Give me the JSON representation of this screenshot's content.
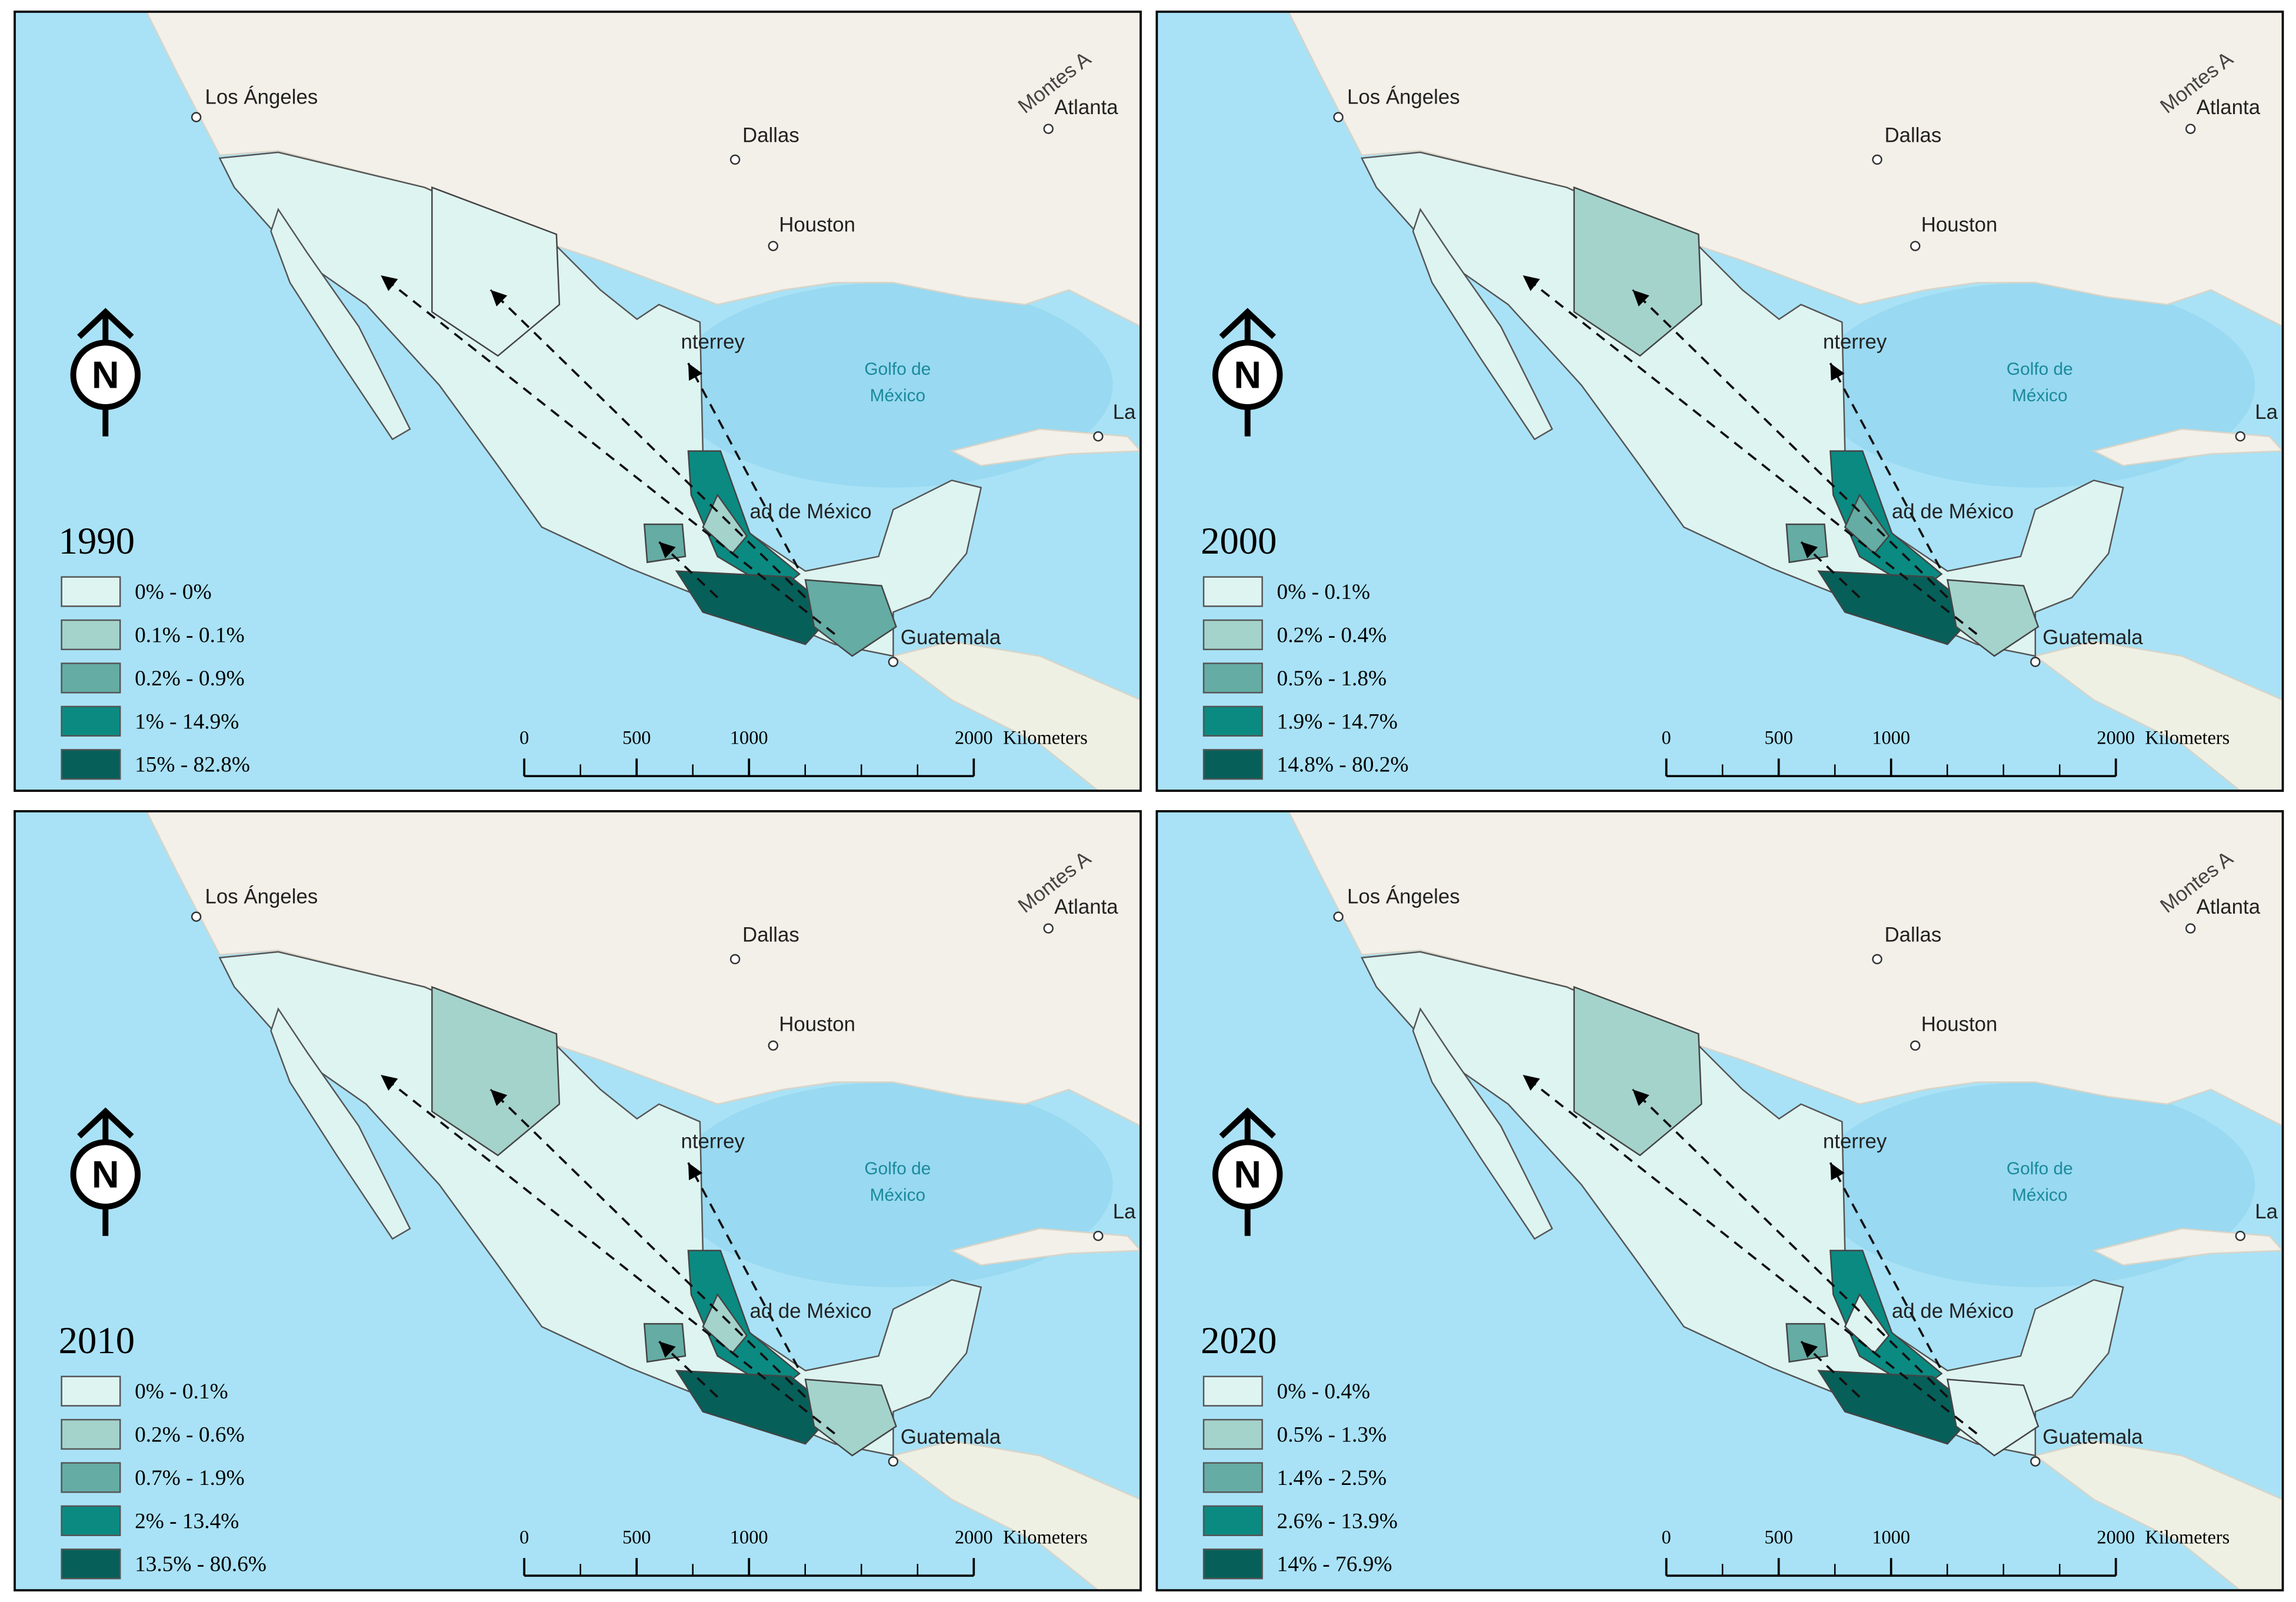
{
  "panels": [
    {
      "year": "1990",
      "legend": [
        {
          "label": "0% - 0%",
          "color": "#def4f1"
        },
        {
          "label": "0.1% - 0.1%",
          "color": "#a4d3cc"
        },
        {
          "label": "0.2% - 0.9%",
          "color": "#64aca4"
        },
        {
          "label": "1% - 14.9%",
          "color": "#0b8a82"
        },
        {
          "label": "15% - 82.8%",
          "color": "#075f59"
        }
      ]
    },
    {
      "year": "2000",
      "legend": [
        {
          "label": "0% - 0.1%",
          "color": "#def4f1"
        },
        {
          "label": "0.2% - 0.4%",
          "color": "#a4d3cc"
        },
        {
          "label": "0.5% - 1.8%",
          "color": "#64aca4"
        },
        {
          "label": "1.9% - 14.7%",
          "color": "#0b8a82"
        },
        {
          "label": "14.8% - 80.2%",
          "color": "#075f59"
        }
      ]
    },
    {
      "year": "2010",
      "legend": [
        {
          "label": "0% - 0.1%",
          "color": "#def4f1"
        },
        {
          "label": "0.2% - 0.6%",
          "color": "#a4d3cc"
        },
        {
          "label": "0.7% - 1.9%",
          "color": "#64aca4"
        },
        {
          "label": "2% - 13.4%",
          "color": "#0b8a82"
        },
        {
          "label": "13.5% - 80.6%",
          "color": "#075f59"
        }
      ]
    },
    {
      "year": "2020",
      "legend": [
        {
          "label": "0% - 0.4%",
          "color": "#def4f1"
        },
        {
          "label": "0.5% - 1.3%",
          "color": "#a4d3cc"
        },
        {
          "label": "1.4% - 2.5%",
          "color": "#64aca4"
        },
        {
          "label": "2.6% - 13.9%",
          "color": "#0b8a82"
        },
        {
          "label": "14% - 76.9%",
          "color": "#075f59"
        }
      ]
    }
  ],
  "places": {
    "los_angeles": "Los Ángeles",
    "dallas": "Dallas",
    "houston": "Houston",
    "atlanta": "Atlanta",
    "montes": "Montes A",
    "golfo_1": "Golfo de",
    "golfo_2": "México",
    "la_habana": "La H",
    "guatemala": "Guatemala",
    "monterrey": "nterrey",
    "cdmx": "ad de México"
  },
  "north": "N",
  "scale": {
    "ticks": [
      0,
      500,
      1000,
      2000
    ],
    "unit": "Kilometers"
  }
}
